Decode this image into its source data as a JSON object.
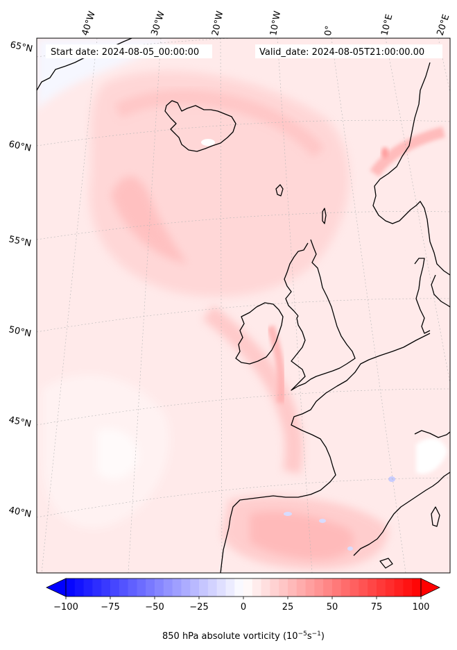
{
  "header": {
    "start_date": "Start date: 2024-08-05_00:00:00",
    "valid_date": "Valid_date: 2024-08-05T21:00:00.00"
  },
  "longitude_labels": [
    "40°W",
    "30°W",
    "20°W",
    "10°W",
    "0°",
    "10°E",
    "20°E"
  ],
  "latitude_labels": [
    "65°N",
    "60°N",
    "55°N",
    "50°N",
    "45°N",
    "40°N"
  ],
  "colorbar": {
    "ticks": [
      "−100",
      "−75",
      "−50",
      "−25",
      "0",
      "25",
      "50",
      "75",
      "100"
    ],
    "label_main": "850 hPa absolute vorticity (10",
    "label_exp1": "−5",
    "label_mid": "s",
    "label_exp2": "−1",
    "label_end": ")",
    "range": [
      -100,
      100
    ],
    "colormap": "bwr",
    "low_color": "#0000ff",
    "mid_color": "#ffffff",
    "high_color": "#ff0000"
  },
  "colors": {
    "coast": "#000000",
    "grid": "#b0b0b0",
    "light_red": "#ffe3e3",
    "medium_red": "#ffc9c9",
    "strong_red": "#ff9d9d"
  }
}
